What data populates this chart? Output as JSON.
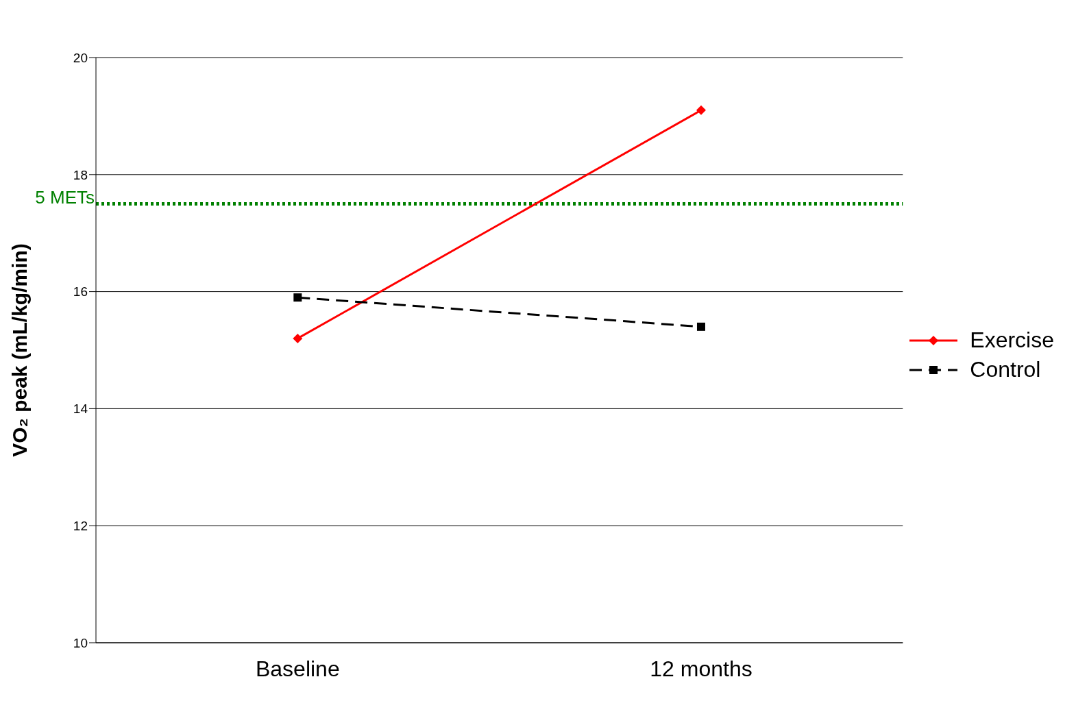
{
  "chart_data": {
    "type": "line",
    "ylabel": "VO₂ peak (mL/kg/min)",
    "categories": [
      "Baseline",
      "12 months"
    ],
    "series": [
      {
        "name": "Exercise",
        "color": "#ff0000",
        "values": [
          15.2,
          19.1
        ],
        "marker": "diamond",
        "line_style": "solid"
      },
      {
        "name": "Control",
        "color": "#000000",
        "values": [
          15.9,
          15.4
        ],
        "marker": "square",
        "line_style": "dashed"
      }
    ],
    "ylim": [
      10,
      20
    ],
    "yticks": [
      10,
      12,
      14,
      16,
      18,
      20
    ],
    "grid": "y",
    "legend": "right",
    "ref_lines": [
      {
        "axis": "y",
        "value": 17.5,
        "label": "5 METs",
        "color": "#008000",
        "line_style": "dotted"
      }
    ]
  }
}
